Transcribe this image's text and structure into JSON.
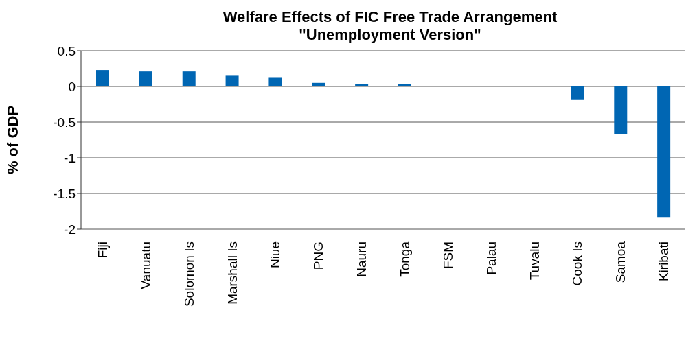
{
  "chart_data": {
    "type": "bar",
    "title": "Welfare Effects of FIC Free Trade Arrangement\n\"Unemployment Version\"",
    "ylabel": "% of GDP",
    "categories": [
      "Fiji",
      "Vanuatu",
      "Solomon Is",
      "Marshall Is",
      "Niue",
      "PNG",
      "Nauru",
      "Tonga",
      "FSM",
      "Palau",
      "Tuvalu",
      "Cook Is",
      "Samoa",
      "Kiribati"
    ],
    "values": [
      0.23,
      0.21,
      0.21,
      0.15,
      0.13,
      0.05,
      0.03,
      0.03,
      0,
      0,
      0,
      -0.19,
      -0.67,
      -1.84
    ],
    "color": "#0066b3",
    "ylim": [
      -2,
      0.5
    ],
    "yticks": [
      0.5,
      0,
      -0.5,
      -1,
      -1.5,
      -2
    ],
    "grid": "y"
  }
}
